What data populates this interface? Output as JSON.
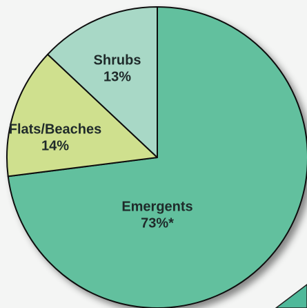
{
  "chart_data": {
    "type": "pie",
    "categories": [
      "Emergents",
      "Flats/Beaches",
      "Shrubs"
    ],
    "values": [
      73,
      14,
      13
    ],
    "value_labels": [
      "73%*",
      "14%",
      "13%"
    ],
    "colors": [
      "#62c09e",
      "#cfe08e",
      "#a8d8c6"
    ]
  }
}
